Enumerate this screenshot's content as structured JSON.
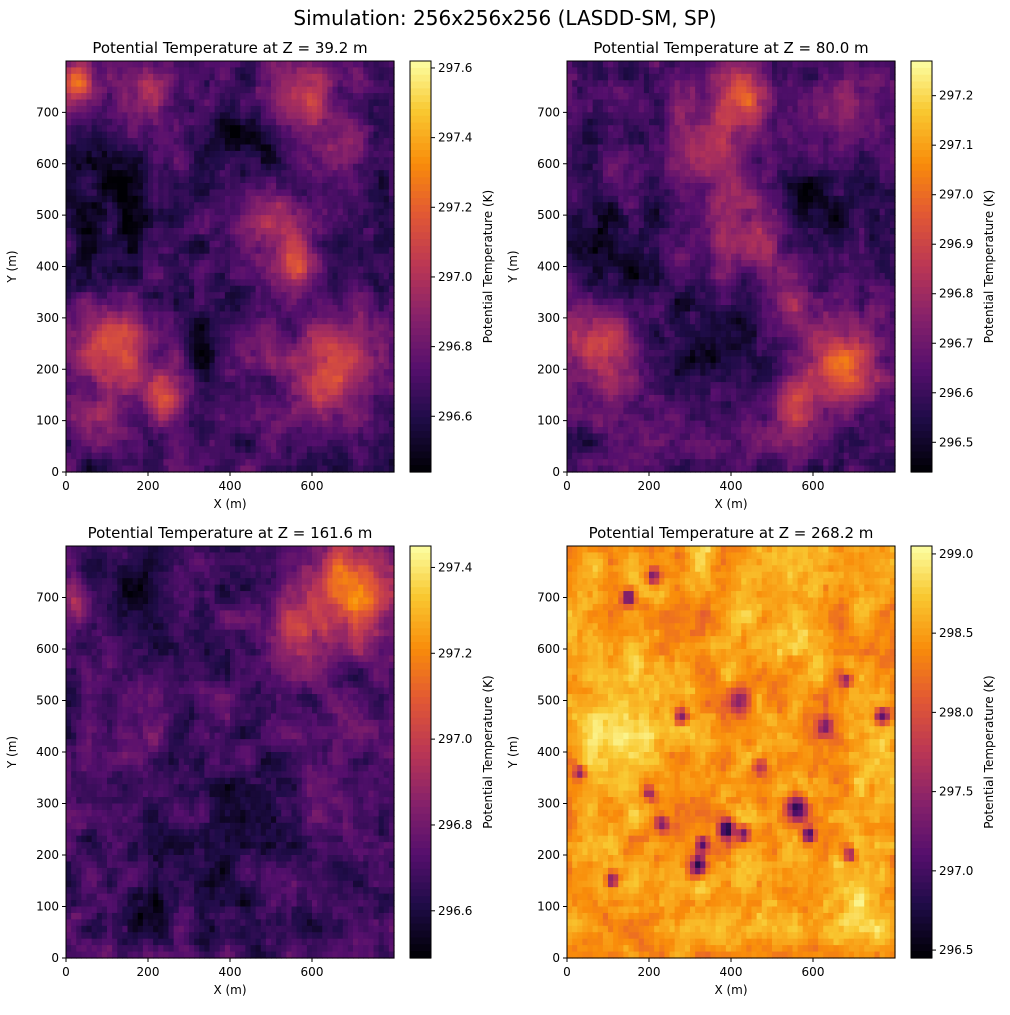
{
  "figure": {
    "suptitle": "Simulation: 256x256x256 (LASDD-SM, SP)"
  },
  "chart_data": [
    {
      "type": "heatmap",
      "title": "Potential Temperature at Z = 39.2 m",
      "xlabel": "X (m)",
      "ylabel": "Y (m)",
      "xlim": [
        0,
        800
      ],
      "ylim": [
        0,
        800
      ],
      "xticks": [
        0,
        200,
        400,
        600
      ],
      "yticks": [
        0,
        100,
        200,
        300,
        400,
        500,
        600,
        700
      ],
      "colormap": "inferno",
      "colorbar": {
        "label": "Potential Temperature (K)",
        "min": 296.44,
        "max": 297.62,
        "ticks": [
          "296.6",
          "296.8",
          "297.0",
          "297.2",
          "297.4",
          "297.6"
        ]
      },
      "hot_regions": [
        {
          "x": 30,
          "y": 760,
          "r": 50,
          "v": 0.75
        },
        {
          "x": 180,
          "y": 730,
          "r": 90,
          "v": 0.5
        },
        {
          "x": 580,
          "y": 720,
          "r": 110,
          "v": 0.55
        },
        {
          "x": 700,
          "y": 640,
          "r": 60,
          "v": 0.4
        },
        {
          "x": 500,
          "y": 480,
          "r": 90,
          "v": 0.5
        },
        {
          "x": 560,
          "y": 410,
          "r": 60,
          "v": 0.7
        },
        {
          "x": 120,
          "y": 230,
          "r": 110,
          "v": 0.65
        },
        {
          "x": 280,
          "y": 230,
          "r": 90,
          "v": 0.5
        },
        {
          "x": 430,
          "y": 230,
          "r": 70,
          "v": 0.35
        },
        {
          "x": 640,
          "y": 210,
          "r": 120,
          "v": 0.6
        },
        {
          "x": 50,
          "y": 110,
          "r": 60,
          "v": 0.45
        },
        {
          "x": 250,
          "y": 150,
          "r": 60,
          "v": 0.7
        }
      ],
      "cold_regions": [
        {
          "x": 130,
          "y": 500,
          "r": 170
        },
        {
          "x": 340,
          "y": 260,
          "r": 110
        },
        {
          "x": 450,
          "y": 640,
          "r": 120
        }
      ]
    },
    {
      "type": "heatmap",
      "title": "Potential Temperature at Z = 80.0 m",
      "xlabel": "X (m)",
      "ylabel": "Y (m)",
      "xlim": [
        0,
        800
      ],
      "ylim": [
        0,
        800
      ],
      "xticks": [
        0,
        200,
        400,
        600
      ],
      "yticks": [
        0,
        100,
        200,
        300,
        400,
        500,
        600,
        700
      ],
      "colormap": "inferno",
      "colorbar": {
        "label": "Potential Temperature (K)",
        "min": 296.44,
        "max": 297.27,
        "ticks": [
          "296.5",
          "296.6",
          "296.7",
          "296.8",
          "296.9",
          "297.0",
          "297.1",
          "297.2"
        ]
      },
      "hot_regions": [
        {
          "x": 430,
          "y": 730,
          "r": 80,
          "v": 0.8
        },
        {
          "x": 680,
          "y": 720,
          "r": 90,
          "v": 0.45
        },
        {
          "x": 350,
          "y": 640,
          "r": 130,
          "v": 0.45
        },
        {
          "x": 450,
          "y": 470,
          "r": 130,
          "v": 0.45
        },
        {
          "x": 560,
          "y": 330,
          "r": 70,
          "v": 0.4
        },
        {
          "x": 80,
          "y": 250,
          "r": 110,
          "v": 0.7
        },
        {
          "x": 680,
          "y": 220,
          "r": 110,
          "v": 0.65
        },
        {
          "x": 560,
          "y": 120,
          "r": 90,
          "v": 0.55
        },
        {
          "x": 130,
          "y": 80,
          "r": 70,
          "v": 0.3
        }
      ],
      "cold_regions": [
        {
          "x": 110,
          "y": 420,
          "r": 150
        },
        {
          "x": 380,
          "y": 260,
          "r": 120
        },
        {
          "x": 620,
          "y": 520,
          "r": 110
        }
      ]
    },
    {
      "type": "heatmap",
      "title": "Potential Temperature at Z = 161.6 m",
      "xlabel": "X (m)",
      "ylabel": "Y (m)",
      "xlim": [
        0,
        800
      ],
      "ylim": [
        0,
        800
      ],
      "xticks": [
        0,
        200,
        400,
        600
      ],
      "yticks": [
        0,
        100,
        200,
        300,
        400,
        500,
        600,
        700
      ],
      "colormap": "inferno",
      "colorbar": {
        "label": "Potential Temperature (K)",
        "min": 296.49,
        "max": 297.45,
        "ticks": [
          "296.6",
          "296.8",
          "297.0",
          "297.2",
          "297.4"
        ]
      },
      "hot_regions": [
        {
          "x": 700,
          "y": 720,
          "r": 130,
          "v": 0.75
        },
        {
          "x": 560,
          "y": 640,
          "r": 110,
          "v": 0.55
        },
        {
          "x": 20,
          "y": 700,
          "r": 40,
          "v": 0.5
        },
        {
          "x": 720,
          "y": 420,
          "r": 90,
          "v": 0.3
        },
        {
          "x": 150,
          "y": 420,
          "r": 90,
          "v": 0.3
        }
      ],
      "cold_regions": [
        {
          "x": 420,
          "y": 250,
          "r": 140
        },
        {
          "x": 160,
          "y": 690,
          "r": 110
        },
        {
          "x": 220,
          "y": 120,
          "r": 90
        }
      ]
    },
    {
      "type": "heatmap",
      "title": "Potential Temperature at Z = 268.2 m",
      "xlabel": "X (m)",
      "ylabel": "Y (m)",
      "xlim": [
        0,
        800
      ],
      "ylim": [
        0,
        800
      ],
      "xticks": [
        0,
        200,
        400,
        600
      ],
      "yticks": [
        0,
        100,
        200,
        300,
        400,
        500,
        600,
        700
      ],
      "colormap": "inferno",
      "colorbar": {
        "label": "Potential Temperature (K)",
        "min": 296.45,
        "max": 299.05,
        "ticks": [
          "296.5",
          "297.0",
          "297.5",
          "298.0",
          "298.5",
          "299.0"
        ]
      },
      "background_level": 0.8,
      "hot_regions": [
        {
          "x": 120,
          "y": 430,
          "r": 120,
          "v": 0.95
        },
        {
          "x": 700,
          "y": 120,
          "r": 90,
          "v": 0.92
        },
        {
          "x": 550,
          "y": 750,
          "r": 120,
          "v": 0.9
        }
      ],
      "cold_regions": [
        {
          "x": 320,
          "y": 180,
          "r": 26,
          "v": 0.08
        },
        {
          "x": 330,
          "y": 220,
          "r": 20,
          "v": 0.15
        },
        {
          "x": 390,
          "y": 250,
          "r": 24,
          "v": 0.1
        },
        {
          "x": 430,
          "y": 240,
          "r": 20,
          "v": 0.2
        },
        {
          "x": 560,
          "y": 290,
          "r": 30,
          "v": 0.15
        },
        {
          "x": 590,
          "y": 240,
          "r": 18,
          "v": 0.2
        },
        {
          "x": 420,
          "y": 500,
          "r": 32,
          "v": 0.3
        },
        {
          "x": 280,
          "y": 470,
          "r": 22,
          "v": 0.3
        },
        {
          "x": 150,
          "y": 700,
          "r": 20,
          "v": 0.15
        },
        {
          "x": 210,
          "y": 740,
          "r": 18,
          "v": 0.3
        },
        {
          "x": 110,
          "y": 150,
          "r": 18,
          "v": 0.25
        },
        {
          "x": 690,
          "y": 200,
          "r": 18,
          "v": 0.3
        },
        {
          "x": 770,
          "y": 470,
          "r": 22,
          "v": 0.15
        },
        {
          "x": 680,
          "y": 540,
          "r": 18,
          "v": 0.35
        },
        {
          "x": 230,
          "y": 260,
          "r": 22,
          "v": 0.3
        },
        {
          "x": 630,
          "y": 450,
          "r": 24,
          "v": 0.35
        },
        {
          "x": 30,
          "y": 360,
          "r": 18,
          "v": 0.35
        },
        {
          "x": 470,
          "y": 370,
          "r": 24,
          "v": 0.4
        },
        {
          "x": 200,
          "y": 320,
          "r": 18,
          "v": 0.4
        }
      ]
    }
  ]
}
